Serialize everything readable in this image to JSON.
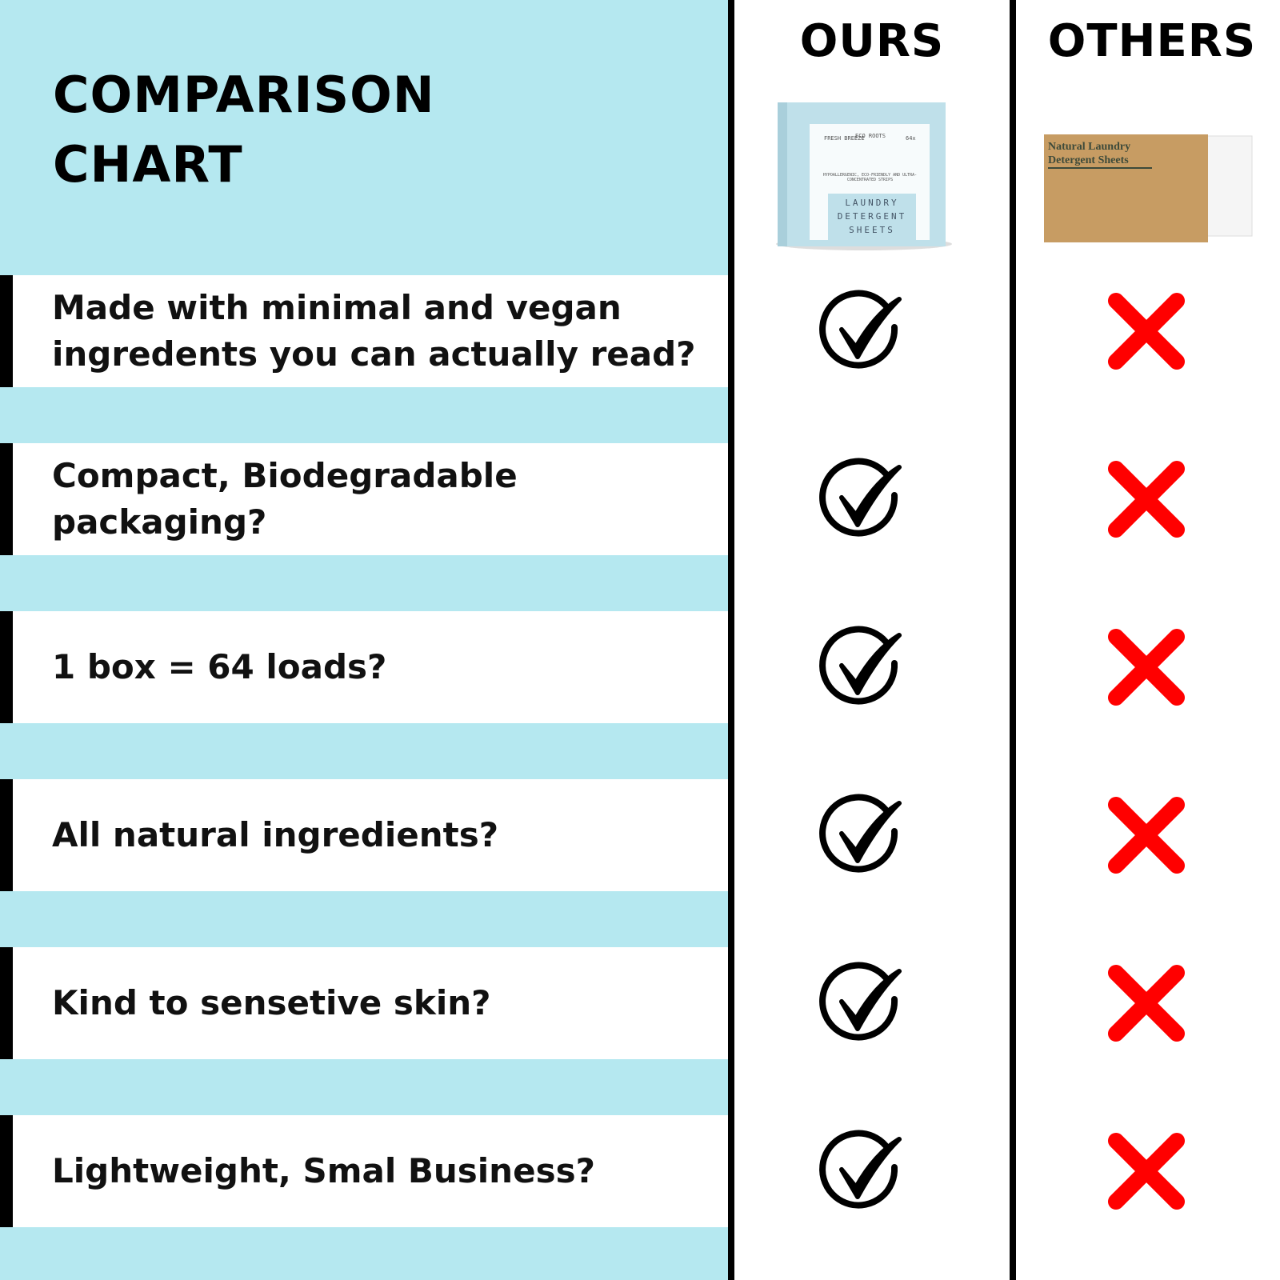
{
  "header": {
    "title_lines": [
      "COMPARISON",
      "CHART"
    ],
    "columns": [
      "OURS",
      "OTHERS"
    ]
  },
  "products": {
    "ours": {
      "brand": "ECO ROOTS",
      "scent": "FRESH BREEZE",
      "count": "64x",
      "tagline": "HYPOALLERGENIC, ECO-FRIENDLY AND ULTRA-CONCENTRATED STRIPS",
      "name": "LAUNDRY DETERGENT SHEETS"
    },
    "others": {
      "name": "Natural Laundry Detergent Sheets"
    }
  },
  "rows": [
    {
      "lines": [
        "Made with minimal and vegan",
        "ingredents you can actually read?"
      ]
    },
    {
      "lines": [
        "Compact, Biodegradable",
        "packaging?"
      ]
    },
    {
      "lines": [
        "1 box = 64 loads?"
      ]
    },
    {
      "lines": [
        "All natural ingredients?"
      ]
    },
    {
      "lines": [
        "Kind to sensetive skin?"
      ]
    },
    {
      "lines": [
        "Lightweight, Smal Business?"
      ]
    }
  ]
}
